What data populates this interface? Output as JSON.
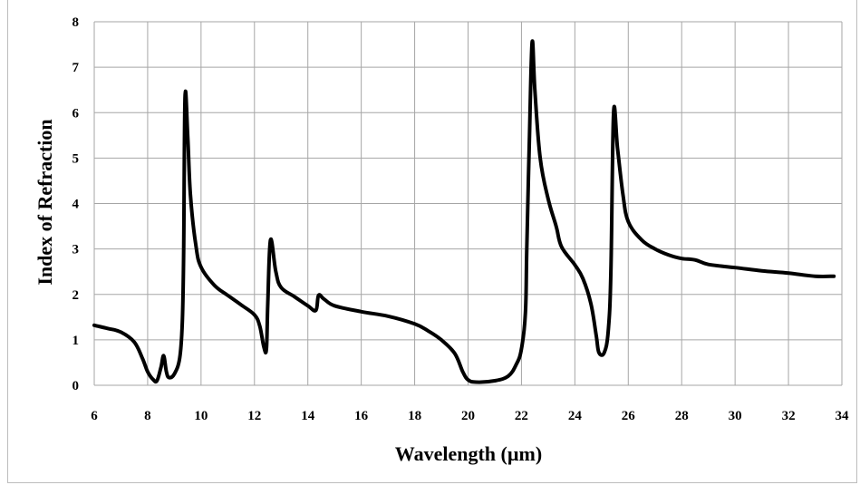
{
  "chart_data": {
    "type": "line",
    "title": "",
    "xlabel": "Wavelength (µm)",
    "ylabel": "Index of Refraction",
    "xlim": [
      6,
      34
    ],
    "ylim": [
      0,
      8
    ],
    "x_ticks": [
      "6",
      "8",
      "10",
      "12",
      "14",
      "16",
      "18",
      "20",
      "22",
      "24",
      "26",
      "28",
      "30",
      "32",
      "34"
    ],
    "y_ticks": [
      "0",
      "1",
      "2",
      "3",
      "4",
      "5",
      "6",
      "7",
      "8"
    ],
    "grid": true,
    "legend": "none",
    "series": [
      {
        "color": "#000000",
        "points": [
          [
            6.0,
            1.32
          ],
          [
            6.5,
            1.25
          ],
          [
            7.0,
            1.17
          ],
          [
            7.5,
            0.95
          ],
          [
            7.8,
            0.6
          ],
          [
            8.0,
            0.3
          ],
          [
            8.2,
            0.13
          ],
          [
            8.35,
            0.1
          ],
          [
            8.5,
            0.4
          ],
          [
            8.6,
            0.65
          ],
          [
            8.7,
            0.3
          ],
          [
            8.8,
            0.17
          ],
          [
            9.0,
            0.25
          ],
          [
            9.2,
            0.6
          ],
          [
            9.3,
            1.4
          ],
          [
            9.35,
            3.0
          ],
          [
            9.4,
            6.35
          ],
          [
            9.5,
            5.5
          ],
          [
            9.6,
            4.2
          ],
          [
            9.8,
            3.1
          ],
          [
            10.0,
            2.6
          ],
          [
            10.5,
            2.2
          ],
          [
            11.0,
            1.98
          ],
          [
            11.5,
            1.77
          ],
          [
            12.0,
            1.55
          ],
          [
            12.2,
            1.3
          ],
          [
            12.35,
            0.85
          ],
          [
            12.45,
            0.8
          ],
          [
            12.5,
            1.8
          ],
          [
            12.6,
            3.2
          ],
          [
            12.8,
            2.5
          ],
          [
            13.0,
            2.15
          ],
          [
            13.5,
            1.95
          ],
          [
            14.0,
            1.75
          ],
          [
            14.3,
            1.65
          ],
          [
            14.4,
            1.98
          ],
          [
            14.6,
            1.9
          ],
          [
            15.0,
            1.75
          ],
          [
            16.0,
            1.62
          ],
          [
            17.0,
            1.52
          ],
          [
            18.0,
            1.35
          ],
          [
            18.5,
            1.2
          ],
          [
            19.0,
            1.0
          ],
          [
            19.5,
            0.7
          ],
          [
            19.8,
            0.3
          ],
          [
            20.0,
            0.12
          ],
          [
            20.3,
            0.07
          ],
          [
            21.0,
            0.1
          ],
          [
            21.5,
            0.2
          ],
          [
            21.8,
            0.45
          ],
          [
            22.0,
            0.8
          ],
          [
            22.15,
            1.6
          ],
          [
            22.2,
            3.0
          ],
          [
            22.3,
            5.5
          ],
          [
            22.4,
            7.55
          ],
          [
            22.5,
            6.5
          ],
          [
            22.7,
            5.0
          ],
          [
            23.0,
            4.1
          ],
          [
            23.3,
            3.5
          ],
          [
            23.5,
            3.05
          ],
          [
            24.0,
            2.65
          ],
          [
            24.3,
            2.35
          ],
          [
            24.6,
            1.8
          ],
          [
            24.8,
            1.1
          ],
          [
            24.9,
            0.72
          ],
          [
            25.1,
            0.72
          ],
          [
            25.25,
            1.2
          ],
          [
            25.35,
            2.5
          ],
          [
            25.45,
            6.0
          ],
          [
            25.6,
            5.2
          ],
          [
            25.8,
            4.2
          ],
          [
            26.0,
            3.6
          ],
          [
            26.5,
            3.2
          ],
          [
            27.0,
            3.0
          ],
          [
            27.5,
            2.87
          ],
          [
            28.0,
            2.79
          ],
          [
            28.5,
            2.76
          ],
          [
            29.0,
            2.66
          ],
          [
            30.0,
            2.59
          ],
          [
            31.0,
            2.52
          ],
          [
            32.0,
            2.47
          ],
          [
            33.0,
            2.4
          ],
          [
            33.7,
            2.4
          ]
        ]
      }
    ]
  }
}
